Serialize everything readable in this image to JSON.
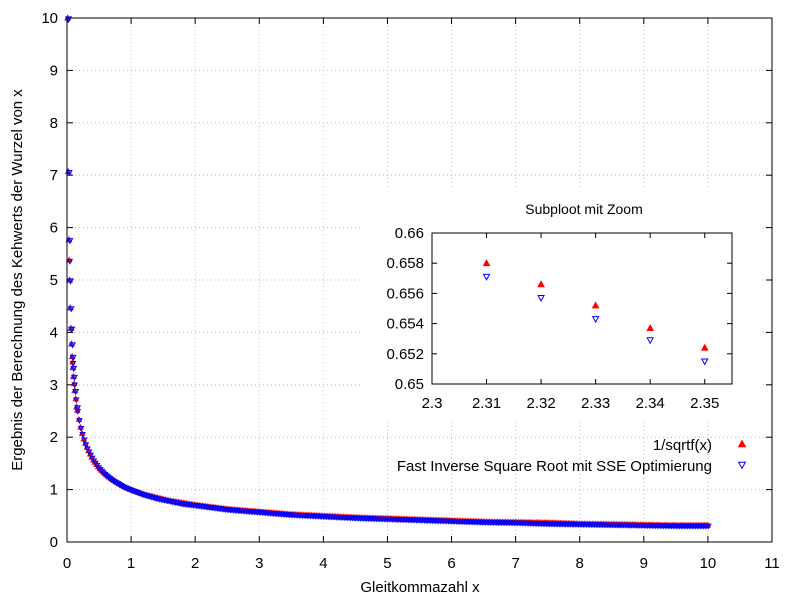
{
  "colors": {
    "series1": "#ff0000",
    "series2": "#0000ff",
    "overlap": "#7a1f9a",
    "axis": "#000000",
    "grid": "#bbbbbb"
  },
  "chart_data": [
    {
      "type": "scatter",
      "xlabel": "Gleitkommazahl x",
      "ylabel": "Ergebnis der Berechnung des Kehwerts der Wurzel von x",
      "xlim": [
        0,
        11
      ],
      "ylim": [
        0,
        10
      ],
      "x_ticks": [
        "0",
        "1",
        "2",
        "3",
        "4",
        "5",
        "6",
        "7",
        "8",
        "9",
        "10",
        "11"
      ],
      "y_ticks": [
        "0",
        "1",
        "2",
        "3",
        "4",
        "5",
        "6",
        "7",
        "8",
        "9",
        "10"
      ],
      "grid": true,
      "legend_position": "bottom-right",
      "series": [
        {
          "name": "1/sqrtf(x)",
          "marker": "filled-triangle-up",
          "x": [
            0.01,
            0.02,
            0.03,
            0.04,
            0.05,
            0.06,
            0.07,
            0.08,
            0.09,
            0.1,
            0.12,
            0.15,
            0.2,
            0.25,
            0.3,
            0.4,
            0.5,
            0.6,
            0.7,
            0.8,
            0.9,
            1,
            1.2,
            1.4,
            1.6,
            1.8,
            2,
            2.5,
            3,
            3.5,
            4,
            4.5,
            5,
            5.5,
            6,
            6.5,
            7,
            7.5,
            8,
            8.5,
            9,
            9.5,
            10
          ],
          "y": [
            10,
            7.07,
            5.77,
            5,
            4.47,
            4.08,
            3.78,
            3.54,
            3.33,
            3.16,
            2.89,
            2.58,
            2.24,
            2,
            1.83,
            1.58,
            1.41,
            1.29,
            1.2,
            1.12,
            1.05,
            1,
            0.91,
            0.85,
            0.79,
            0.75,
            0.71,
            0.63,
            0.58,
            0.53,
            0.5,
            0.47,
            0.45,
            0.43,
            0.41,
            0.39,
            0.38,
            0.37,
            0.35,
            0.34,
            0.33,
            0.32,
            0.32
          ]
        },
        {
          "name": "Fast Inverse Square Root mit SSE Optimierung",
          "marker": "open-triangle-down",
          "x": [
            0.01,
            0.02,
            0.03,
            0.04,
            0.05,
            0.06,
            0.07,
            0.08,
            0.09,
            0.1,
            0.12,
            0.15,
            0.2,
            0.25,
            0.3,
            0.4,
            0.5,
            0.6,
            0.7,
            0.8,
            0.9,
            1,
            1.2,
            1.4,
            1.6,
            1.8,
            2,
            2.5,
            3,
            3.5,
            4,
            4.5,
            5,
            5.5,
            6,
            6.5,
            7,
            7.5,
            8,
            8.5,
            9,
            9.5,
            10
          ],
          "y": [
            9.98,
            7.06,
            5.76,
            4.99,
            4.46,
            4.07,
            3.77,
            3.53,
            3.32,
            3.15,
            2.88,
            2.58,
            2.23,
            2,
            1.82,
            1.58,
            1.41,
            1.29,
            1.19,
            1.12,
            1.05,
            1,
            0.91,
            0.84,
            0.79,
            0.74,
            0.71,
            0.63,
            0.58,
            0.53,
            0.5,
            0.47,
            0.45,
            0.43,
            0.41,
            0.39,
            0.38,
            0.36,
            0.35,
            0.34,
            0.33,
            0.32,
            0.32
          ]
        }
      ]
    },
    {
      "type": "scatter",
      "title": "Subploot mit Zoom",
      "xlim": [
        2.3,
        2.355
      ],
      "ylim": [
        0.65,
        0.66
      ],
      "x_ticks": [
        "2.3",
        "2.31",
        "2.32",
        "2.33",
        "2.34",
        "2.35"
      ],
      "y_ticks": [
        "0.65",
        "0.652",
        "0.654",
        "0.656",
        "0.658",
        "0.66"
      ],
      "grid": false,
      "series": [
        {
          "marker": "filled-triangle-up",
          "x": [
            2.31,
            2.32,
            2.33,
            2.34,
            2.35
          ],
          "y": [
            0.658,
            0.6566,
            0.6552,
            0.6537,
            0.6524
          ]
        },
        {
          "marker": "open-triangle-down",
          "x": [
            2.31,
            2.32,
            2.33,
            2.34,
            2.35
          ],
          "y": [
            0.6571,
            0.6557,
            0.6543,
            0.6529,
            0.6515
          ]
        }
      ]
    }
  ]
}
